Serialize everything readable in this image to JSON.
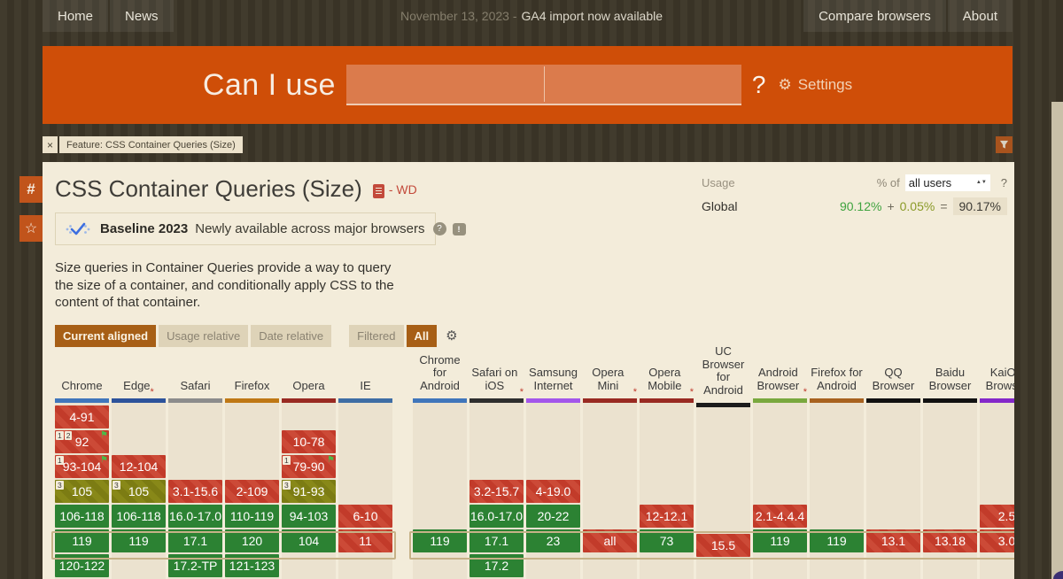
{
  "topbar": {
    "home": "Home",
    "news": "News",
    "banner_date": "November 13, 2023 -",
    "banner_msg": "GA4 import now available",
    "compare": "Compare browsers",
    "about": "About"
  },
  "hero": {
    "logo": "Can I use",
    "question_mark": "?",
    "gear_icon": "⚙",
    "settings": "Settings",
    "search_value": "",
    "search_placeholder": ""
  },
  "feature_tag": {
    "close": "×",
    "label": "Feature: CSS Container Queries (Size)"
  },
  "side_icons": {
    "hash": "#",
    "star": "☆"
  },
  "page": {
    "title": "CSS Container Queries (Size)",
    "spec_status": "- WD",
    "baseline": {
      "label": "Baseline 2023",
      "description": "Newly available across major browsers",
      "help_icon": "?",
      "feedback_icon": "!"
    },
    "description": "Size queries in Container Queries provide a way to query the size of a container, and conditionally apply CSS to the content of that container.",
    "usage": {
      "label": "Usage",
      "percent_of": "% of",
      "select_value": "all users",
      "help": "?",
      "region": "Global",
      "supported": "90.12%",
      "plus": "+",
      "partial": "0.05%",
      "equals": "=",
      "total": "90.17%"
    },
    "view_buttons": {
      "0": "Current aligned",
      "1": "Usage relative",
      "2": "Date relative"
    },
    "filter_buttons": {
      "0": "Filtered",
      "1": "All"
    },
    "options_gear": "⚙"
  },
  "colors": {
    "accent_orange": "#cf4e08",
    "active_button": "#a75f16",
    "supported_green": "#2c8233",
    "unsupported_red": "#c23b2a",
    "partial_olive": "#7c7c13",
    "current_row_outline": "#c6b288",
    "panel_bg": "#f3ecda",
    "column_strip": "#ebe2cf"
  },
  "table": {
    "rows": 7,
    "current_row": 6,
    "groups": [
      {
        "name": "desktop",
        "columns": [
          {
            "name": "Chrome",
            "asterisk": false,
            "bar_color": "#4076bb",
            "cells": [
              {
                "row": 1,
                "text": "4-91",
                "type": "red"
              },
              {
                "row": 2,
                "text": "92",
                "type": "red",
                "notes": [
                  "1",
                  "2"
                ],
                "flag": true
              },
              {
                "row": 3,
                "text": "93-104",
                "type": "red",
                "notes": [
                  "1"
                ],
                "flag": true
              },
              {
                "row": 4,
                "text": "105",
                "type": "olive",
                "notes": [
                  "3"
                ]
              },
              {
                "row": 5,
                "text": "106-118",
                "type": "green"
              },
              {
                "row": 6,
                "text": "119",
                "type": "green"
              },
              {
                "row": 7,
                "text": "120-122",
                "type": "green"
              }
            ]
          },
          {
            "name": "Edge",
            "asterisk": true,
            "bar_color": "#2d539b",
            "cells": [
              {
                "row": 3,
                "text": "12-104",
                "type": "red"
              },
              {
                "row": 4,
                "text": "105",
                "type": "olive",
                "notes": [
                  "3"
                ]
              },
              {
                "row": 5,
                "text": "106-118",
                "type": "green"
              },
              {
                "row": 6,
                "text": "119",
                "type": "green"
              }
            ]
          },
          {
            "name": "Safari",
            "asterisk": false,
            "bar_color": "#8c8c8c",
            "cells": [
              {
                "row": 4,
                "text": "3.1-15.6",
                "type": "red"
              },
              {
                "row": 5,
                "text": "16.0-17.0",
                "type": "green"
              },
              {
                "row": 6,
                "text": "17.1",
                "type": "green"
              },
              {
                "row": 7,
                "text": "17.2-TP",
                "type": "green"
              }
            ]
          },
          {
            "name": "Firefox",
            "asterisk": false,
            "bar_color": "#bf7815",
            "cells": [
              {
                "row": 4,
                "text": "2-109",
                "type": "red"
              },
              {
                "row": 5,
                "text": "110-119",
                "type": "green"
              },
              {
                "row": 6,
                "text": "120",
                "type": "green"
              },
              {
                "row": 7,
                "text": "121-123",
                "type": "green"
              }
            ]
          },
          {
            "name": "Opera",
            "asterisk": false,
            "bar_color": "#992a22",
            "cells": [
              {
                "row": 2,
                "text": "10-78",
                "type": "red"
              },
              {
                "row": 3,
                "text": "79-90",
                "type": "red",
                "notes": [
                  "1"
                ],
                "flag": true
              },
              {
                "row": 4,
                "text": "91-93",
                "type": "olive",
                "notes": [
                  "3"
                ]
              },
              {
                "row": 5,
                "text": "94-103",
                "type": "green"
              },
              {
                "row": 6,
                "text": "104",
                "type": "green"
              }
            ]
          },
          {
            "name": "IE",
            "asterisk": false,
            "bar_color": "#3e6da5",
            "cells": [
              {
                "row": 5,
                "text": "6-10",
                "type": "red"
              },
              {
                "row": 6,
                "text": "11",
                "type": "red"
              }
            ]
          }
        ]
      },
      {
        "name": "mobile",
        "columns": [
          {
            "name": "Chrome for Android",
            "asterisk": false,
            "bar_color": "#4076bb",
            "cells": [
              {
                "row": 6,
                "text": "119",
                "type": "green"
              }
            ]
          },
          {
            "name": "Safari on iOS",
            "asterisk": true,
            "bar_color": "#2e2e2e",
            "cells": [
              {
                "row": 4,
                "text": "3.2-15.7",
                "type": "red"
              },
              {
                "row": 5,
                "text": "16.0-17.0",
                "type": "green"
              },
              {
                "row": 6,
                "text": "17.1",
                "type": "green"
              },
              {
                "row": 7,
                "text": "17.2",
                "type": "green"
              }
            ]
          },
          {
            "name": "Samsung Internet",
            "asterisk": false,
            "bar_color": "#a356ea",
            "cells": [
              {
                "row": 4,
                "text": "4-19.0",
                "type": "red"
              },
              {
                "row": 5,
                "text": "20-22",
                "type": "green"
              },
              {
                "row": 6,
                "text": "23",
                "type": "green"
              }
            ]
          },
          {
            "name": "Opera Mini",
            "asterisk": true,
            "bar_color": "#992a22",
            "cells": [
              {
                "row": 6,
                "text": "all",
                "type": "red"
              }
            ]
          },
          {
            "name": "Opera Mobile",
            "asterisk": true,
            "bar_color": "#992a22",
            "cells": [
              {
                "row": 5,
                "text": "12-12.1",
                "type": "red"
              },
              {
                "row": 6,
                "text": "73",
                "type": "green"
              }
            ]
          },
          {
            "name": "UC Browser for Android",
            "asterisk": false,
            "bar_color": "#1c1c1c",
            "cells": [
              {
                "row": 6,
                "text": "15.5",
                "type": "red"
              }
            ]
          },
          {
            "name": "Android Browser",
            "asterisk": true,
            "bar_color": "#79a83e",
            "cells": [
              {
                "row": 5,
                "text": "2.1-4.4.4",
                "type": "red"
              },
              {
                "row": 6,
                "text": "119",
                "type": "green"
              }
            ]
          },
          {
            "name": "Firefox for Android",
            "asterisk": false,
            "bar_color": "#a8621f",
            "cells": [
              {
                "row": 6,
                "text": "119",
                "type": "green"
              }
            ]
          },
          {
            "name": "QQ Browser",
            "asterisk": false,
            "bar_color": "#111111",
            "cells": [
              {
                "row": 6,
                "text": "13.1",
                "type": "red"
              }
            ]
          },
          {
            "name": "Baidu Browser",
            "asterisk": false,
            "bar_color": "#111111",
            "cells": [
              {
                "row": 6,
                "text": "13.18",
                "type": "red"
              }
            ]
          },
          {
            "name": "KaiOS Browser",
            "asterisk": false,
            "bar_color": "#8428c9",
            "cells": [
              {
                "row": 5,
                "text": "2.5",
                "type": "red"
              },
              {
                "row": 6,
                "text": "3.0",
                "type": "red"
              }
            ]
          }
        ]
      }
    ]
  }
}
